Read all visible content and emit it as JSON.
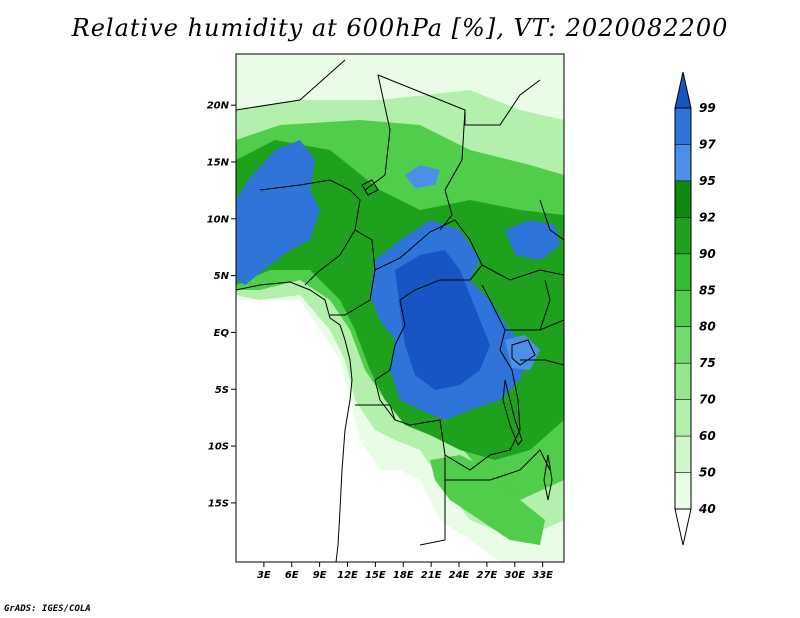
{
  "title": "Relative humidity at 600hPa [%], VT: 2020082200",
  "credit": "GrADS: IGES/COLA",
  "map": {
    "region": "Central Africa",
    "lat_range": [
      -20,
      25
    ],
    "lon_range": [
      0,
      35
    ],
    "lat_ticks": [
      {
        "value": 20,
        "label": "20N"
      },
      {
        "value": 15,
        "label": "15N"
      },
      {
        "value": 10,
        "label": "10N"
      },
      {
        "value": 5,
        "label": "5N"
      },
      {
        "value": 0,
        "label": "EQ"
      },
      {
        "value": -5,
        "label": "5S"
      },
      {
        "value": -10,
        "label": "10S"
      },
      {
        "value": -15,
        "label": "15S"
      }
    ],
    "lon_ticks": [
      {
        "value": 3,
        "label": "3E"
      },
      {
        "value": 6,
        "label": "6E"
      },
      {
        "value": 9,
        "label": "9E"
      },
      {
        "value": 12,
        "label": "12E"
      },
      {
        "value": 15,
        "label": "15E"
      },
      {
        "value": 18,
        "label": "18E"
      },
      {
        "value": 21,
        "label": "21E"
      },
      {
        "value": 24,
        "label": "24E"
      },
      {
        "value": 27,
        "label": "27E"
      },
      {
        "value": 30,
        "label": "30E"
      },
      {
        "value": 33,
        "label": "33E"
      }
    ]
  },
  "colorbar": {
    "levels": [
      {
        "label": "40",
        "color": "#e8fce6"
      },
      {
        "label": "50",
        "color": "#cdf7c8"
      },
      {
        "label": "60",
        "color": "#b3f0ab"
      },
      {
        "label": "70",
        "color": "#94e88c"
      },
      {
        "label": "75",
        "color": "#72dc6c"
      },
      {
        "label": "80",
        "color": "#4fcd4b"
      },
      {
        "label": "85",
        "color": "#33bb33"
      },
      {
        "label": "90",
        "color": "#1ea21e"
      },
      {
        "label": "92",
        "color": "#0e8a0e"
      },
      {
        "label": "95",
        "color": "#4a90e8"
      },
      {
        "label": "97",
        "color": "#2f74d8"
      },
      {
        "label": "99",
        "color": "#1656c4"
      }
    ],
    "below_color": "#ffffff",
    "above_color": "#1656c4"
  }
}
